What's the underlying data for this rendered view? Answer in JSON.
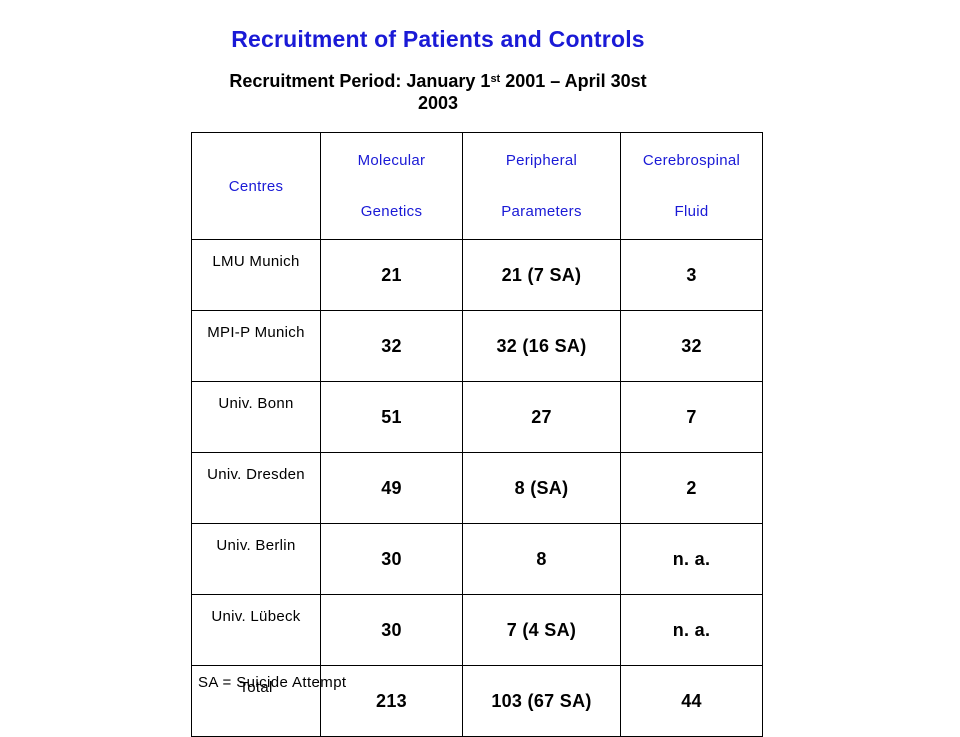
{
  "slide": {
    "title": "Recruitment of Patients and Controls",
    "period_prefix": "Recruitment Period: January 1",
    "period_sup": "st",
    "period_suffix": " 2001 – April 30st",
    "period_line2": "2003",
    "footnote": "SA = Suicide Attempt"
  },
  "table": {
    "header": {
      "centres": "Centres",
      "col1_line1": "Molecular",
      "col1_line2": "Genetics",
      "col2_line1": "Peripheral",
      "col2_line2": "Parameters",
      "col3_line1": "Cerebrospinal",
      "col3_line2": "Fluid"
    },
    "rows": [
      {
        "centre": "LMU Munich",
        "genetics": "21",
        "peripheral": "21 (7 SA)",
        "csf": "3"
      },
      {
        "centre": "MPI-P Munich",
        "genetics": "32",
        "peripheral": "32 (16 SA)",
        "csf": "32"
      },
      {
        "centre": "Univ. Bonn",
        "genetics": "51",
        "peripheral": "27",
        "csf": "7"
      },
      {
        "centre": "Univ. Dresden",
        "genetics": "49",
        "peripheral": "8 (SA)",
        "csf": "2"
      },
      {
        "centre": "Univ. Berlin",
        "genetics": "30",
        "peripheral": "8",
        "csf": "n. a."
      },
      {
        "centre": "Univ. Lübeck",
        "genetics": "30",
        "peripheral": "7 (4 SA)",
        "csf": "n. a."
      },
      {
        "centre": "Total",
        "genetics": "213",
        "peripheral": "103 (67 SA)",
        "csf": "44"
      }
    ]
  },
  "colors": {
    "heading_blue": "#1a1ad6",
    "text": "#000000",
    "background": "#ffffff"
  }
}
